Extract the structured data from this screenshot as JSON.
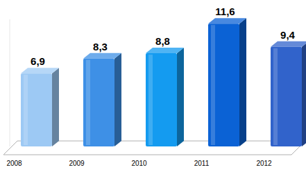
{
  "chart_data": {
    "type": "bar",
    "categories": [
      "2008",
      "2009",
      "2010",
      "2011",
      "2012"
    ],
    "values": [
      6.9,
      8.3,
      8.8,
      11.6,
      9.4
    ],
    "value_labels": [
      "6,9",
      "8,3",
      "8,8",
      "11,6",
      "9,4"
    ],
    "colors": [
      "#9dc9f4",
      "#3e90e6",
      "#149bf0",
      "#0b62d5",
      "#3163cb"
    ],
    "ylim": [
      0,
      12
    ],
    "data_labels": true,
    "tick_labels": "x",
    "grid": false
  }
}
